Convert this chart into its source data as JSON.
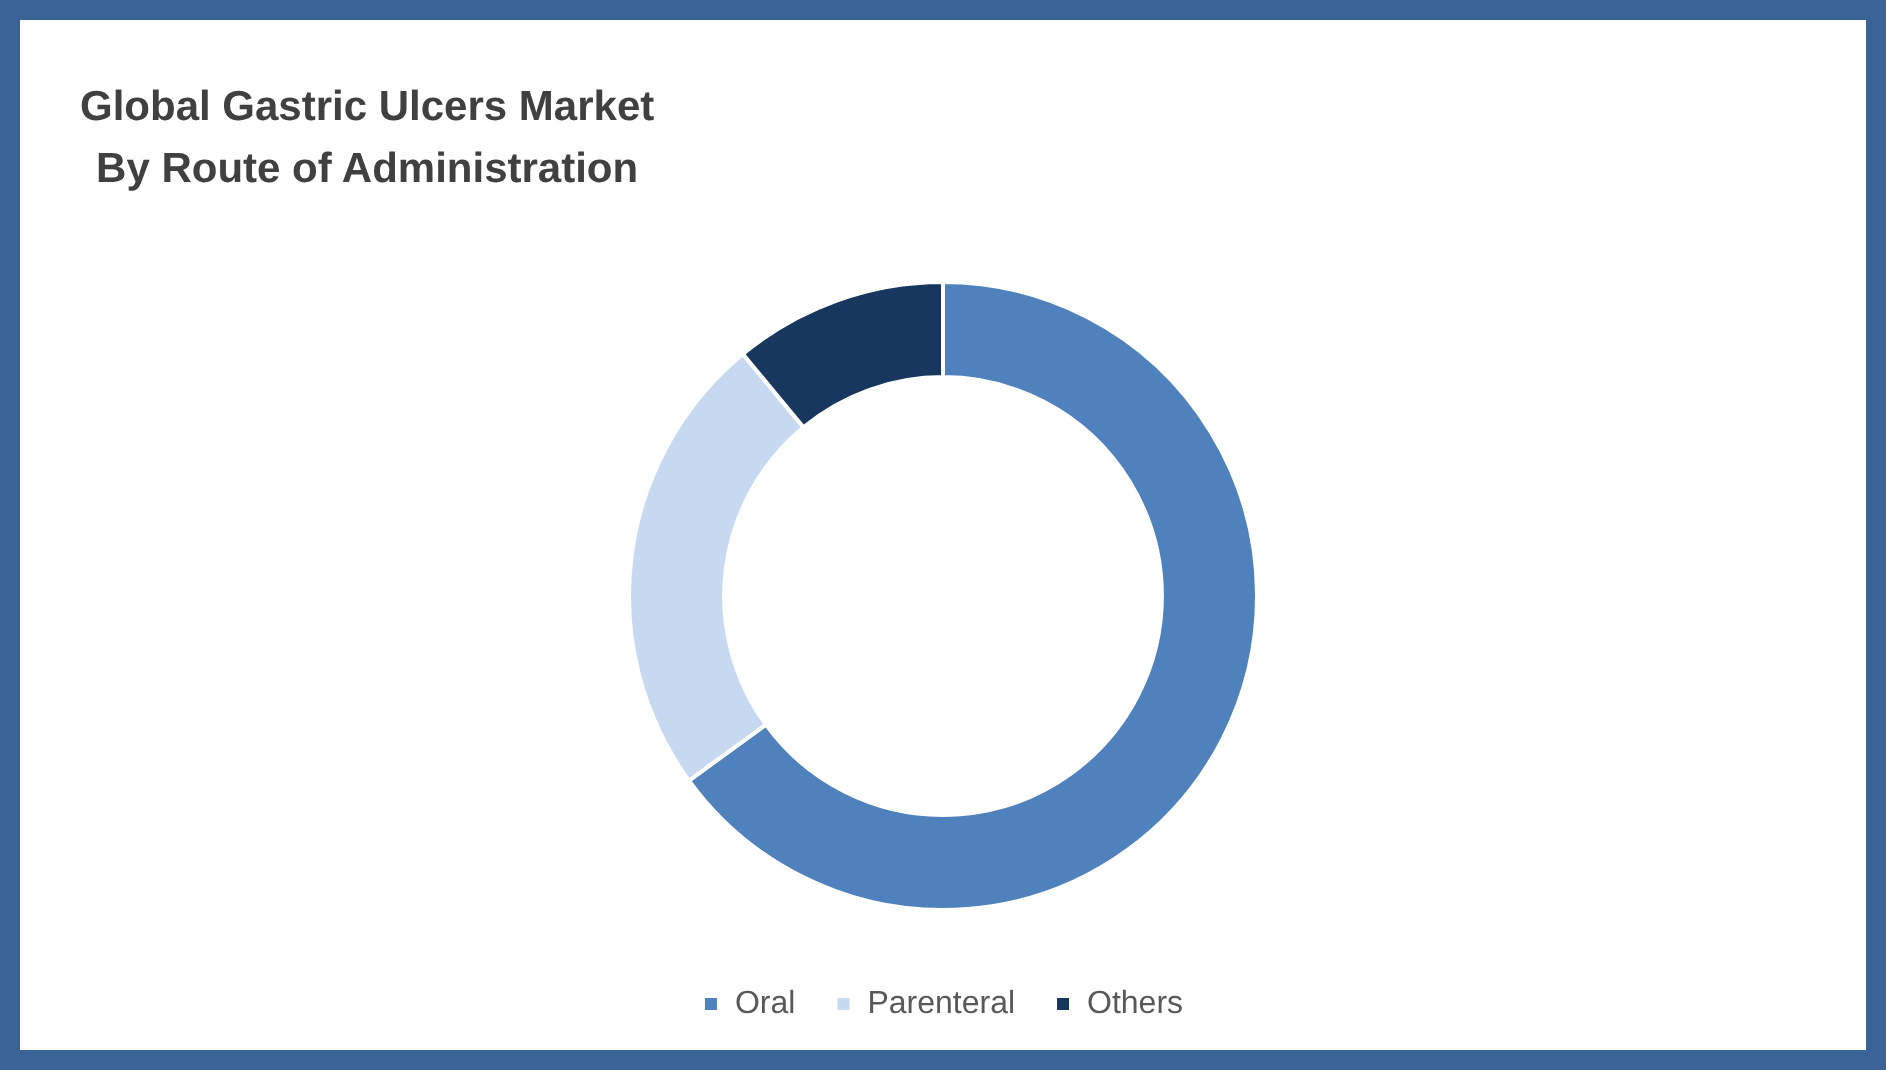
{
  "chart_data": {
    "type": "donut",
    "title": "Global Gastric Ulcers Market\nBy Route of Administration",
    "categories": [
      "Oral",
      "Parenteral",
      "Others"
    ],
    "values": [
      65,
      24,
      11
    ],
    "colors": [
      "#4f81bd",
      "#c6d9f0",
      "#17375e"
    ],
    "legend": "bottom"
  }
}
